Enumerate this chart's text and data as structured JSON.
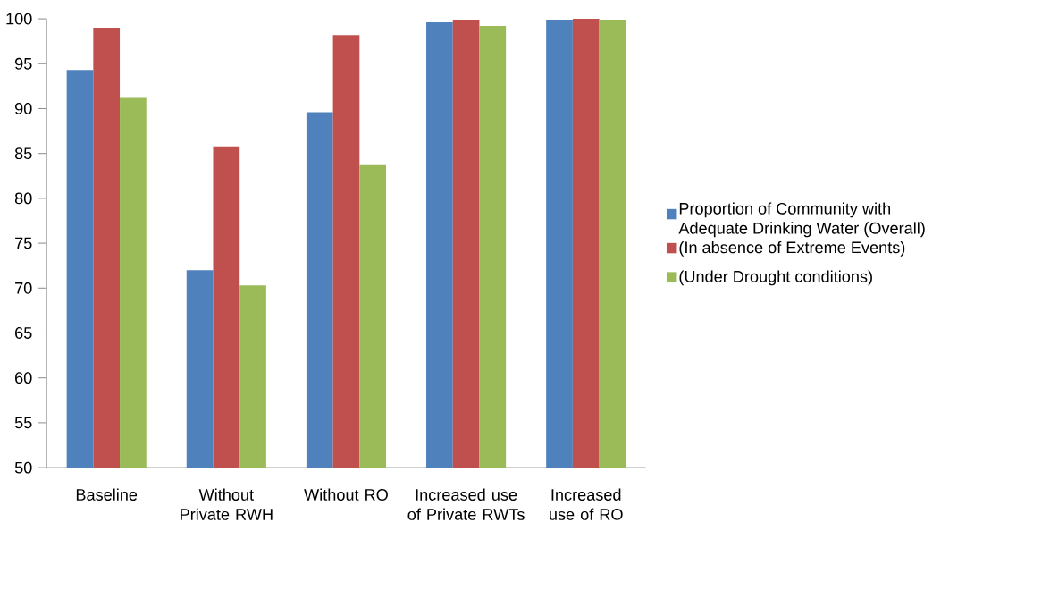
{
  "chart_data": {
    "type": "bar",
    "categories": [
      "Baseline",
      "Without Private RWH",
      "Without RO",
      "Increased use of Private RWTs",
      "Increased use of RO"
    ],
    "series": [
      {
        "name": "Proportion of Community with Adequate Drinking Water (Overall)",
        "color": "#4f81bd",
        "values": [
          94.3,
          72.0,
          89.6,
          99.6,
          99.9
        ]
      },
      {
        "name": "(In absence of Extreme Events)",
        "color": "#c0504d",
        "values": [
          99.0,
          85.8,
          98.2,
          99.9,
          100
        ]
      },
      {
        "name": "(Under Drought conditions)",
        "color": "#9bbb59",
        "values": [
          91.2,
          70.3,
          83.7,
          99.2,
          99.9
        ]
      }
    ],
    "ylim": [
      50,
      100
    ],
    "yticks": [
      50,
      55,
      60,
      65,
      70,
      75,
      80,
      85,
      90,
      95,
      100
    ],
    "grid": false,
    "legend": "right"
  }
}
